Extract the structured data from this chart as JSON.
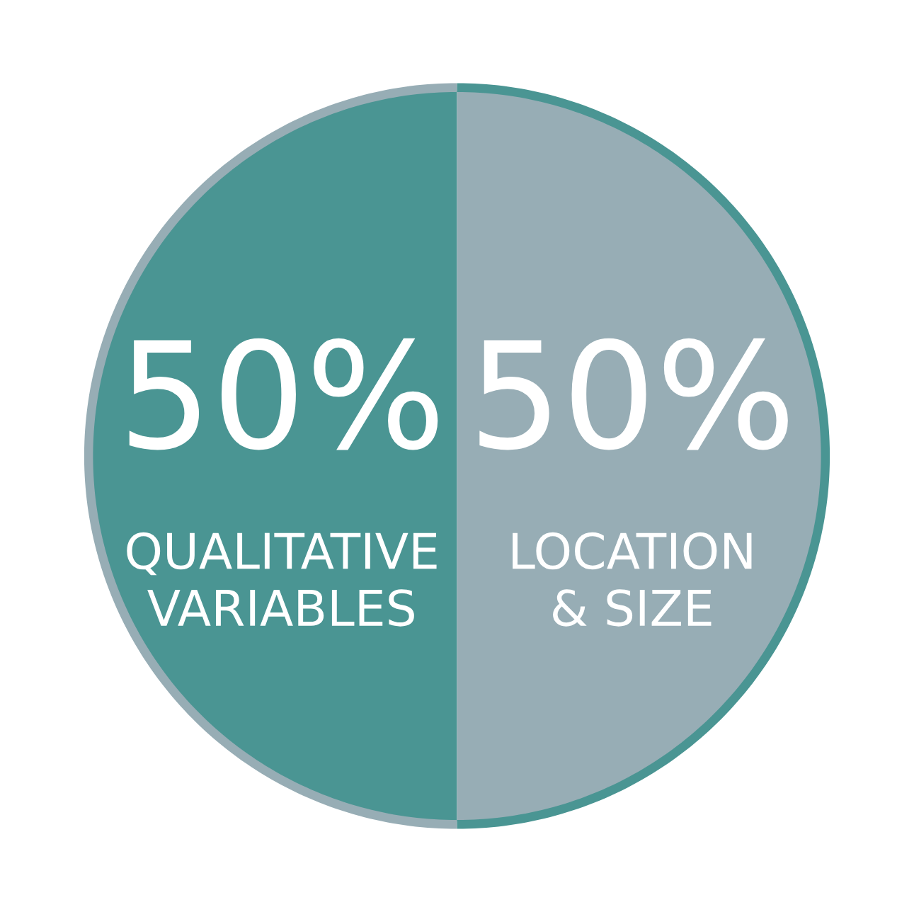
{
  "chart_data": {
    "type": "pie",
    "categories": [
      "QUALITATIVE VARIABLES",
      "LOCATION & SIZE"
    ],
    "values": [
      50,
      50
    ],
    "colors": [
      "#4a9593",
      "#97adb5"
    ],
    "value_labels": [
      "50%",
      "50%"
    ]
  }
}
